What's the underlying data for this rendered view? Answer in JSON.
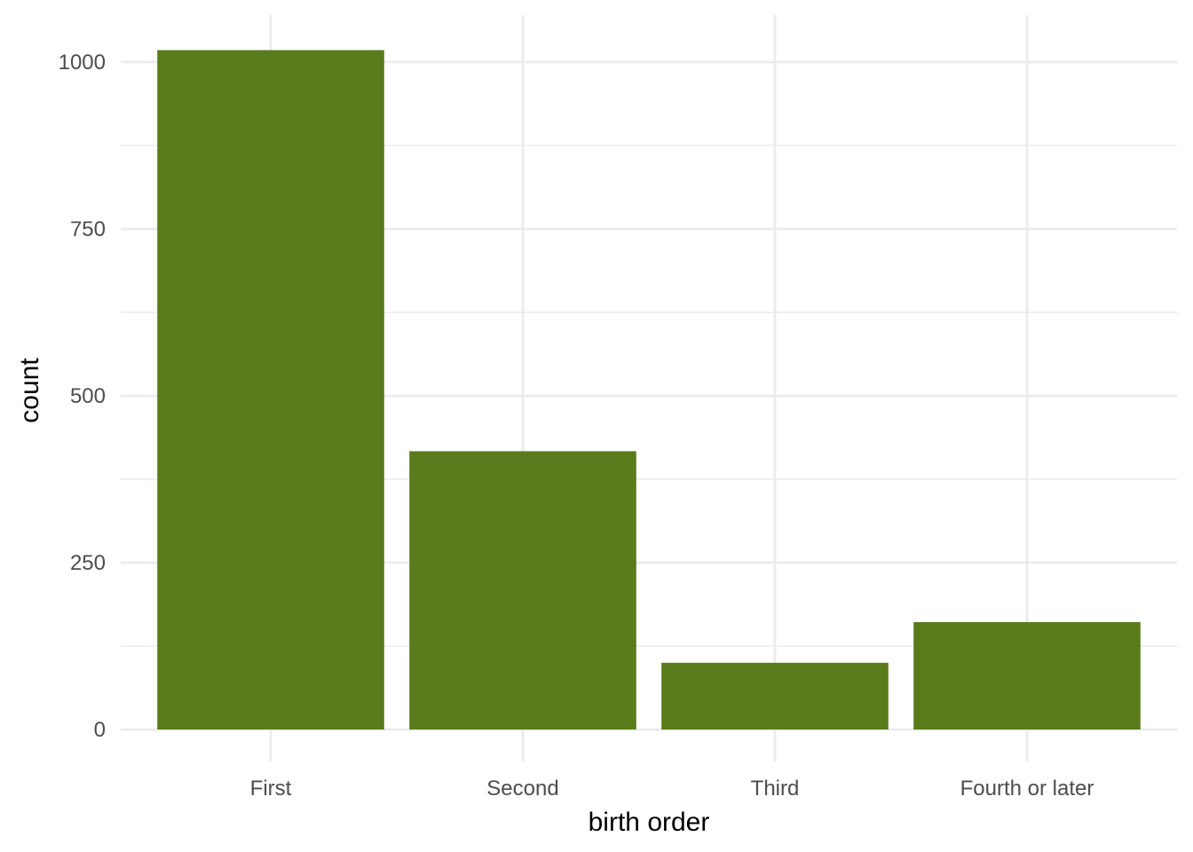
{
  "chart_data": {
    "type": "bar",
    "categories": [
      "First",
      "Second",
      "Third",
      "Fourth or later"
    ],
    "values": [
      1018,
      417,
      100,
      161
    ],
    "xlabel": "birth order",
    "ylabel": "count",
    "ylim": [
      0,
      1070
    ],
    "yticks": [
      0,
      250,
      500,
      750,
      1000
    ],
    "ytick_labels": [
      "0",
      "250",
      "500",
      "750",
      "1000"
    ],
    "minor_yticks": [
      125,
      375,
      625,
      875
    ],
    "grid": true,
    "legend": "none",
    "bar_color": "#5a7b1c",
    "grid_color": "#ebebeb",
    "background": "#ffffff"
  }
}
